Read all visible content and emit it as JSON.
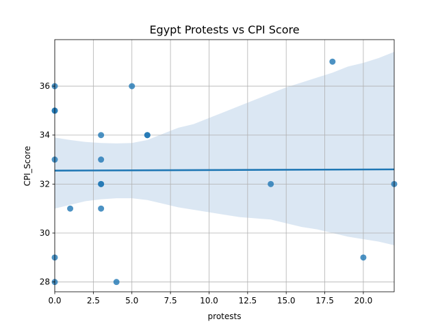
{
  "chart_data": {
    "type": "scatter",
    "title": "Egypt Protests vs CPI Score",
    "xlabel": "protests",
    "ylabel": "CPI_Score",
    "xlim": [
      0,
      22
    ],
    "ylim": [
      27.6,
      37.9
    ],
    "xticks": [
      0.0,
      2.5,
      5.0,
      7.5,
      10.0,
      12.5,
      15.0,
      17.5,
      20.0
    ],
    "xtick_labels": [
      "0.0",
      "2.5",
      "5.0",
      "7.5",
      "10.0",
      "12.5",
      "15.0",
      "17.5",
      "20.0"
    ],
    "yticks": [
      28,
      30,
      32,
      34,
      36
    ],
    "ytick_labels": [
      "28",
      "30",
      "32",
      "34",
      "36"
    ],
    "grid": true,
    "series": [
      {
        "points": [
          {
            "x": 0,
            "y": 36
          },
          {
            "x": 0,
            "y": 35
          },
          {
            "x": 0,
            "y": 35
          },
          {
            "x": 0,
            "y": 33
          },
          {
            "x": 0,
            "y": 29
          },
          {
            "x": 0,
            "y": 28
          },
          {
            "x": 1,
            "y": 31
          },
          {
            "x": 3,
            "y": 34
          },
          {
            "x": 3,
            "y": 33
          },
          {
            "x": 3,
            "y": 32
          },
          {
            "x": 3,
            "y": 32
          },
          {
            "x": 3,
            "y": 31
          },
          {
            "x": 4,
            "y": 28
          },
          {
            "x": 5,
            "y": 36
          },
          {
            "x": 6,
            "y": 34
          },
          {
            "x": 6,
            "y": 34
          },
          {
            "x": 14,
            "y": 32
          },
          {
            "x": 18,
            "y": 37
          },
          {
            "x": 20,
            "y": 29
          },
          {
            "x": 22,
            "y": 32
          }
        ],
        "color": "#1f77b4"
      }
    ],
    "regression": {
      "line": [
        {
          "x": 0,
          "y": 32.55
        },
        {
          "x": 22,
          "y": 32.6
        }
      ],
      "ci_upper": [
        {
          "x": 0,
          "y": 33.9
        },
        {
          "x": 1,
          "y": 33.8
        },
        {
          "x": 2,
          "y": 33.72
        },
        {
          "x": 3,
          "y": 33.68
        },
        {
          "x": 4,
          "y": 33.66
        },
        {
          "x": 5,
          "y": 33.68
        },
        {
          "x": 6,
          "y": 33.8
        },
        {
          "x": 7,
          "y": 34.05
        },
        {
          "x": 8,
          "y": 34.3
        },
        {
          "x": 9,
          "y": 34.45
        },
        {
          "x": 10,
          "y": 34.7
        },
        {
          "x": 11,
          "y": 34.95
        },
        {
          "x": 12,
          "y": 35.2
        },
        {
          "x": 13,
          "y": 35.45
        },
        {
          "x": 14,
          "y": 35.7
        },
        {
          "x": 15,
          "y": 35.95
        },
        {
          "x": 16,
          "y": 36.15
        },
        {
          "x": 17,
          "y": 36.35
        },
        {
          "x": 18,
          "y": 36.55
        },
        {
          "x": 19,
          "y": 36.8
        },
        {
          "x": 20,
          "y": 36.95
        },
        {
          "x": 21,
          "y": 37.15
        },
        {
          "x": 22,
          "y": 37.4
        }
      ],
      "ci_lower": [
        {
          "x": 0,
          "y": 31.0
        },
        {
          "x": 1,
          "y": 31.15
        },
        {
          "x": 2,
          "y": 31.3
        },
        {
          "x": 3,
          "y": 31.38
        },
        {
          "x": 4,
          "y": 31.42
        },
        {
          "x": 5,
          "y": 31.42
        },
        {
          "x": 6,
          "y": 31.35
        },
        {
          "x": 7,
          "y": 31.2
        },
        {
          "x": 8,
          "y": 31.05
        },
        {
          "x": 9,
          "y": 30.95
        },
        {
          "x": 10,
          "y": 30.85
        },
        {
          "x": 11,
          "y": 30.75
        },
        {
          "x": 12,
          "y": 30.65
        },
        {
          "x": 13,
          "y": 30.6
        },
        {
          "x": 14,
          "y": 30.55
        },
        {
          "x": 15,
          "y": 30.4
        },
        {
          "x": 16,
          "y": 30.25
        },
        {
          "x": 17,
          "y": 30.15
        },
        {
          "x": 18,
          "y": 30.0
        },
        {
          "x": 19,
          "y": 29.85
        },
        {
          "x": 20,
          "y": 29.75
        },
        {
          "x": 21,
          "y": 29.65
        },
        {
          "x": 22,
          "y": 29.5
        }
      ],
      "line_color": "#1f77b4",
      "band_color": "#dbe7f3"
    }
  }
}
